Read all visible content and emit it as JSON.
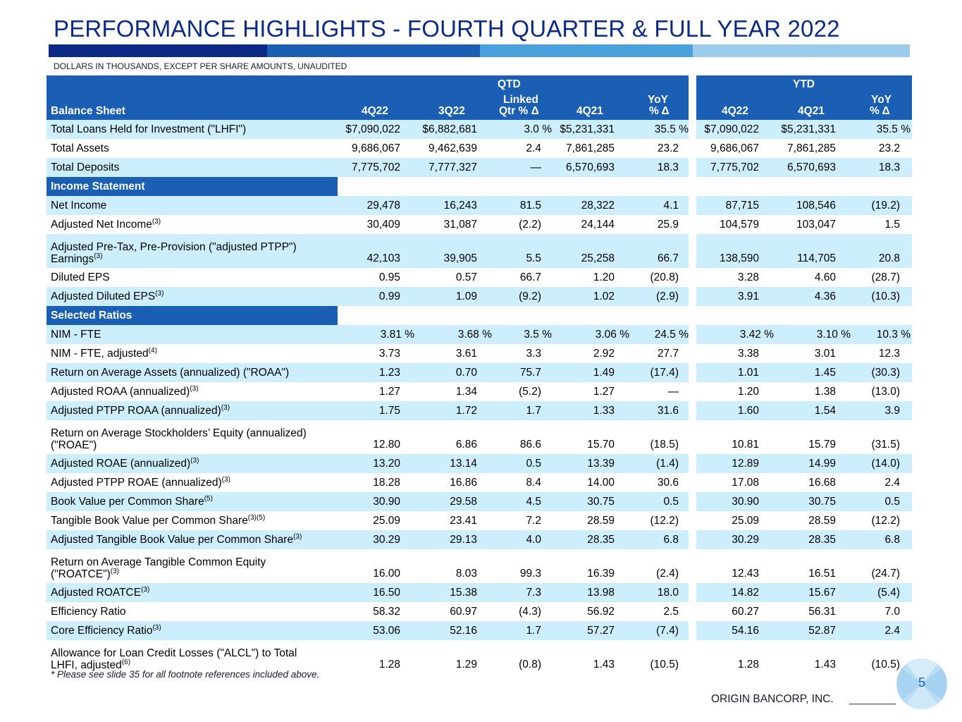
{
  "title": "PERFORMANCE HIGHLIGHTS - FOURTH QUARTER & FULL YEAR 2022",
  "subtitle": "DOLLARS IN THOUSANDS, EXCEPT PER SHARE AMOUNTS, UNAUDITED",
  "colors": {
    "brand_dark": "#0b2a87",
    "header_blue": "#1a5fb4",
    "mid_blue": "#4aa0dc",
    "light_blue": "#9ccbeb",
    "row_alt": "#cdeefc"
  },
  "header": {
    "qtd": "QTD",
    "ytd": "YTD",
    "first_col": "Balance Sheet",
    "q_4q22": "4Q22",
    "q_3q22": "3Q22",
    "q_linked_1": "Linked",
    "q_linked_2": "Qtr  % Δ",
    "q_4q21": "4Q21",
    "q_yoy_1": "YoY",
    "q_yoy_2": "% Δ",
    "y_4q22": "4Q22",
    "y_4q21": "4Q21",
    "y_yoy_1": "YoY",
    "y_yoy_2": "% Δ"
  },
  "sections": {
    "income": "Income Statement",
    "ratios": "Selected Ratios"
  },
  "rows": [
    {
      "label": "Total Loans Held for Investment (\"LHFI\")",
      "sup": "",
      "v": [
        "$7,090,022",
        "$6,882,681",
        "3.0 %",
        "$5,231,331",
        "35.5 %",
        "$7,090,022",
        "$5,231,331",
        "35.5 %"
      ]
    },
    {
      "label": "Total Assets",
      "sup": "",
      "v": [
        "9,686,067",
        "9,462,639",
        "2.4",
        "7,861,285",
        "23.2",
        "9,686,067",
        "7,861,285",
        "23.2"
      ]
    },
    {
      "label": "Total Deposits",
      "sup": "",
      "v": [
        "7,775,702",
        "7,777,327",
        "—",
        "6,570,693",
        "18.3",
        "7,775,702",
        "6,570,693",
        "18.3"
      ]
    },
    {
      "label": "Net Income",
      "sup": "",
      "v": [
        "29,478",
        "16,243",
        "81.5",
        "28,322",
        "4.1",
        "87,715",
        "108,546",
        "(19.2)"
      ]
    },
    {
      "label": "Adjusted Net Income",
      "sup": "(3)",
      "v": [
        "30,409",
        "31,087",
        "(2.2)",
        "24,144",
        "25.9",
        "104,579",
        "103,047",
        "1.5"
      ]
    },
    {
      "label": "Adjusted Pre-Tax, Pre-Provision (\"adjusted PTPP\")",
      "label2": "Earnings",
      "sup": "(3)",
      "v": [
        "42,103",
        "39,905",
        "5.5",
        "25,258",
        "66.7",
        "138,590",
        "114,705",
        "20.8"
      ]
    },
    {
      "label": "Diluted EPS",
      "sup": "",
      "v": [
        "0.95",
        "0.57",
        "66.7",
        "1.20",
        "(20.8)",
        "3.28",
        "4.60",
        "(28.7)"
      ]
    },
    {
      "label": "Adjusted Diluted EPS",
      "sup": "(3)",
      "v": [
        "0.99",
        "1.09",
        "(9.2)",
        "1.02",
        "(2.9)",
        "3.91",
        "4.36",
        "(10.3)"
      ]
    },
    {
      "label": "NIM - FTE",
      "sup": "",
      "v": [
        "3.81 %",
        "3.68 %",
        "3.5 %",
        "3.06 %",
        "24.5 %",
        "3.42 %",
        "3.10 %",
        "10.3 %"
      ]
    },
    {
      "label": "NIM - FTE, adjusted",
      "sup": "(4)",
      "v": [
        "3.73",
        "3.61",
        "3.3",
        "2.92",
        "27.7",
        "3.38",
        "3.01",
        "12.3"
      ]
    },
    {
      "label": "Return on Average Assets (annualized) (\"ROAA\")",
      "sup": "",
      "v": [
        "1.23",
        "0.70",
        "75.7",
        "1.49",
        "(17.4)",
        "1.01",
        "1.45",
        "(30.3)"
      ]
    },
    {
      "label": "Adjusted ROAA (annualized)",
      "sup": "(3)",
      "v": [
        "1.27",
        "1.34",
        "(5.2)",
        "1.27",
        "—",
        "1.20",
        "1.38",
        "(13.0)"
      ]
    },
    {
      "label": "Adjusted PTPP ROAA (annualized)",
      "sup": "(3)",
      "v": [
        "1.75",
        "1.72",
        "1.7",
        "1.33",
        "31.6",
        "1.60",
        "1.54",
        "3.9"
      ]
    },
    {
      "label": "Return on Average Stockholders’ Equity (annualized)",
      "label2": "(\"ROAE\")",
      "sup": "",
      "v": [
        "12.80",
        "6.86",
        "86.6",
        "15.70",
        "(18.5)",
        "10.81",
        "15.79",
        "(31.5)"
      ]
    },
    {
      "label": "Adjusted ROAE (annualized)",
      "sup": "(3)",
      "v": [
        "13.20",
        "13.14",
        "0.5",
        "13.39",
        "(1.4)",
        "12.89",
        "14.99",
        "(14.0)"
      ]
    },
    {
      "label": "Adjusted PTPP ROAE (annualized)",
      "sup": "(3)",
      "v": [
        "18.28",
        "16.86",
        "8.4",
        "14.00",
        "30.6",
        "17.08",
        "16.68",
        "2.4"
      ]
    },
    {
      "label": "Book Value per Common Share",
      "sup": "(5)",
      "v": [
        "30.90",
        "29.58",
        "4.5",
        "30.75",
        "0.5",
        "30.90",
        "30.75",
        "0.5"
      ]
    },
    {
      "label": "Tangible Book Value per Common Share",
      "sup": "(3)(5)",
      "v": [
        "25.09",
        "23.41",
        "7.2",
        "28.59",
        "(12.2)",
        "25.09",
        "28.59",
        "(12.2)"
      ]
    },
    {
      "label": "Adjusted Tangible Book Value per Common Share",
      "sup": "(3)",
      "v": [
        "30.29",
        "29.13",
        "4.0",
        "28.35",
        "6.8",
        "30.29",
        "28.35",
        "6.8"
      ]
    },
    {
      "label": "Return on Average Tangible Common Equity",
      "label2": "(\"ROATCE\")",
      "sup": "(3)",
      "v": [
        "16.00",
        "8.03",
        "99.3",
        "16.39",
        "(2.4)",
        "12.43",
        "16.51",
        "(24.7)"
      ]
    },
    {
      "label": "Adjusted ROATCE",
      "sup": "(3)",
      "v": [
        "16.50",
        "15.38",
        "7.3",
        "13.98",
        "18.0",
        "14.82",
        "15.67",
        "(5.4)"
      ]
    },
    {
      "label": "Efficiency Ratio",
      "sup": "",
      "v": [
        "58.32",
        "60.97",
        "(4.3)",
        "56.92",
        "2.5",
        "60.27",
        "56.31",
        "7.0"
      ]
    },
    {
      "label": "Core Efficiency Ratio",
      "sup": "(3)",
      "v": [
        "53.06",
        "52.16",
        "1.7",
        "57.27",
        "(7.4)",
        "54.16",
        "52.87",
        "2.4"
      ]
    },
    {
      "label": "Allowance for Loan Credit Losses (\"ALCL\") to Total",
      "label2": "LHFI, adjusted",
      "sup": "(6)",
      "v": [
        "1.28",
        "1.29",
        "(0.8)",
        "1.43",
        "(10.5)",
        "1.28",
        "1.43",
        "(10.5)"
      ]
    }
  ],
  "footnote": "* Please see slide 35 for all footnote references included above.",
  "company": "ORIGIN BANCORP, INC.",
  "page_number": "5"
}
